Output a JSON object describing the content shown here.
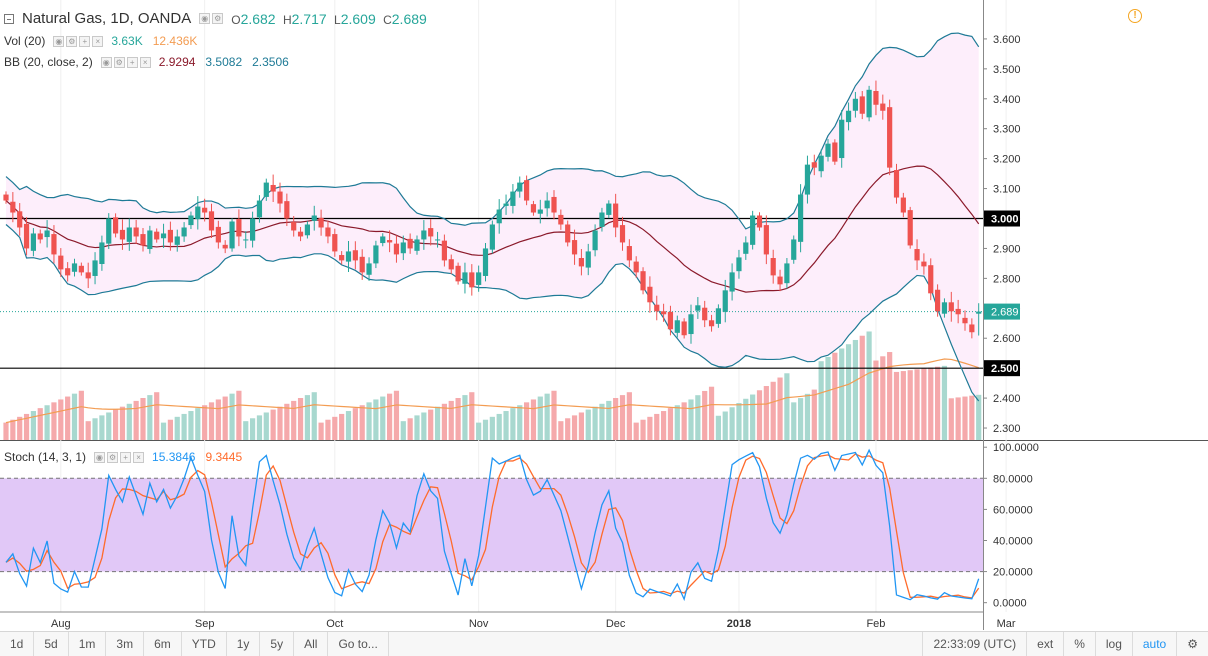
{
  "legend": {
    "symbol": "Natural Gas, 1D, OANDA",
    "o_label": "O",
    "o_value": "2.682",
    "h_label": "H",
    "h_value": "2.717",
    "l_label": "L",
    "l_value": "2.609",
    "c_label": "C",
    "c_value": "2.689",
    "vol_title": "Vol (20)",
    "vol_value": "3.63K",
    "vol_ma": "12.436K",
    "bb_title": "BB (20, close, 2)",
    "bb_mid": "2.9294",
    "bb_upper": "3.5082",
    "bb_lower": "2.3506",
    "stoch_title": "Stoch (14, 3, 1)",
    "stoch_k": "15.3846",
    "stoch_d": "9.3445"
  },
  "colors": {
    "up": "#26a69a",
    "down": "#ef5350",
    "bb_line": "#1e7a96",
    "bb_mid": "#8b1a2b",
    "bb_fill": "#fdeefb",
    "vol_up": "#a8d8cf",
    "vol_down": "#f5a9ab",
    "vol_ma": "#f39c52",
    "stoch_k": "#2196f3",
    "stoch_d": "#ff6b2b",
    "stoch_band": "#e1c8f7",
    "last_price": "#26a69a"
  },
  "chart_data": [
    {
      "type": "candlestick",
      "title": "Natural Gas, 1D, OANDA",
      "ylim": [
        2.26,
        3.73
      ],
      "y_ticks": [
        "3.600",
        "3.500",
        "3.400",
        "3.300",
        "3.200",
        "3.100",
        "3.000",
        "2.900",
        "2.800",
        "2.700",
        "2.600",
        "2.500",
        "2.400",
        "2.300"
      ],
      "x_ticks": [
        "Aug",
        "Sep",
        "Oct",
        "Nov",
        "Dec",
        "2018",
        "Feb",
        "Mar"
      ],
      "x_tick_index": [
        8,
        29,
        48,
        69,
        89,
        107,
        127,
        146
      ],
      "horizontal_lines": [
        {
          "value": 3.0,
          "label": "3.000"
        },
        {
          "value": 2.5,
          "label": "2.500"
        }
      ],
      "last_price": {
        "value": 2.689,
        "label": "2.689"
      },
      "closes": [
        3.06,
        3.02,
        2.97,
        2.9,
        2.95,
        2.93,
        2.96,
        2.88,
        2.83,
        2.81,
        2.85,
        2.82,
        2.8,
        2.86,
        2.92,
        3.0,
        2.95,
        2.93,
        2.97,
        2.94,
        2.91,
        2.96,
        2.93,
        2.95,
        2.92,
        2.94,
        2.97,
        3.01,
        3.04,
        3.02,
        2.96,
        2.92,
        2.9,
        2.99,
        2.94,
        2.93,
        3.0,
        3.06,
        3.12,
        3.09,
        3.05,
        3.0,
        2.96,
        2.94,
        2.98,
        3.01,
        2.97,
        2.94,
        2.89,
        2.86,
        2.89,
        2.86,
        2.82,
        2.85,
        2.91,
        2.94,
        2.92,
        2.88,
        2.92,
        2.9,
        2.93,
        2.96,
        2.94,
        2.93,
        2.86,
        2.83,
        2.79,
        2.82,
        2.77,
        2.82,
        2.9,
        2.98,
        3.03,
        3.05,
        3.09,
        3.12,
        3.06,
        3.02,
        3.03,
        3.06,
        3.02,
        2.98,
        2.92,
        2.88,
        2.84,
        2.89,
        2.96,
        3.02,
        3.05,
        2.97,
        2.92,
        2.86,
        2.82,
        2.76,
        2.72,
        2.69,
        2.68,
        2.63,
        2.66,
        2.61,
        2.68,
        2.71,
        2.66,
        2.64,
        2.7,
        2.76,
        2.82,
        2.87,
        2.92,
        3.01,
        2.97,
        2.88,
        2.81,
        2.78,
        2.85,
        2.93,
        3.08,
        3.18,
        3.17,
        3.21,
        3.25,
        3.19,
        3.33,
        3.36,
        3.4,
        3.35,
        3.43,
        3.38,
        3.36,
        3.17,
        3.07,
        3.02,
        2.91,
        2.86,
        2.84,
        2.75,
        2.69,
        2.72,
        2.69,
        2.68,
        2.65,
        2.62,
        2.689
      ],
      "volume_ylim": [
        0,
        145000
      ],
      "stoch_ylim": [
        -6,
        104
      ],
      "stoch_ticks": [
        "100.0000",
        "80.0000",
        "60.0000",
        "40.0000",
        "20.0000",
        "0.0000"
      ],
      "stoch_bands": [
        20,
        80
      ],
      "series": [
        {
          "name": "Vol (20)"
        },
        {
          "name": "BB (20, close, 2)"
        },
        {
          "name": "Stoch (14, 3, 1)"
        }
      ]
    }
  ],
  "scale": {
    "price_axis_visible": true
  },
  "clock": "22:33:09 (UTC)",
  "toolbar": {
    "ranges": [
      "1d",
      "5d",
      "1m",
      "3m",
      "6m",
      "YTD",
      "1y",
      "5y",
      "All"
    ],
    "goto": "Go to...",
    "right": [
      "ext",
      "%",
      "log",
      "auto"
    ]
  }
}
